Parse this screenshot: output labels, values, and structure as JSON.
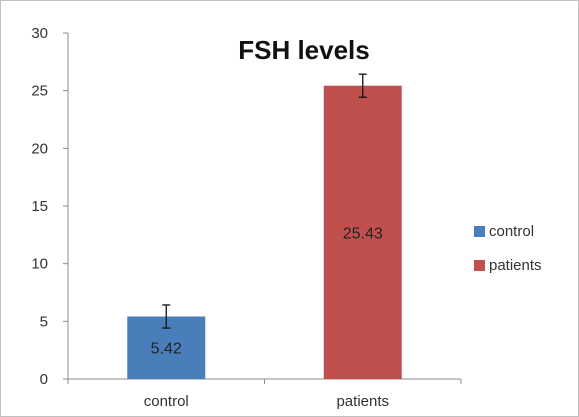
{
  "chart_data": {
    "type": "bar",
    "title": "FSH levels",
    "xlabel": "",
    "ylabel": "",
    "categories": [
      "control",
      "patients"
    ],
    "values": [
      5.42,
      25.43
    ],
    "error": [
      1.0,
      1.0
    ],
    "data_labels": [
      "5.42",
      "25.43"
    ],
    "colors": [
      "#4a7ebb",
      "#c0504d"
    ],
    "ylim": [
      0,
      30
    ],
    "yticks": [
      0,
      5,
      10,
      15,
      20,
      25,
      30
    ],
    "grid": false,
    "legend": {
      "placement": "right",
      "entries": [
        "control",
        "patients"
      ]
    }
  }
}
